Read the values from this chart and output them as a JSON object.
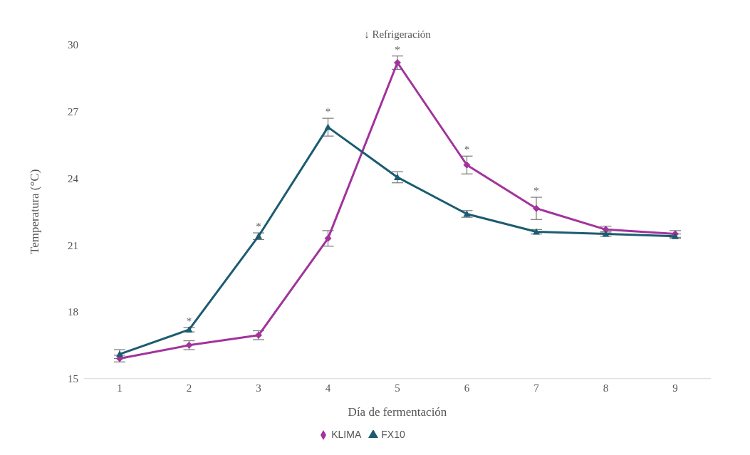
{
  "chart_data": {
    "type": "line",
    "xlabel": "Día de fermentación",
    "ylabel": "Temperatura (°C)",
    "categories": [
      "1",
      "2",
      "3",
      "4",
      "5",
      "6",
      "7",
      "8",
      "9"
    ],
    "series": [
      {
        "name": "KLIMA",
        "color": "#a2339c",
        "marker": "diamond",
        "values": [
          15.9,
          16.5,
          16.95,
          21.3,
          29.2,
          24.6,
          22.65,
          21.7,
          21.5
        ],
        "errors": [
          0.15,
          0.2,
          0.2,
          0.35,
          0.3,
          0.4,
          0.5,
          0.15,
          0.15
        ]
      },
      {
        "name": "FX10",
        "color": "#1b5c70",
        "marker": "triangle",
        "values": [
          16.1,
          17.2,
          21.4,
          26.3,
          24.05,
          22.4,
          21.6,
          21.5,
          21.4
        ],
        "errors": [
          0.2,
          0.1,
          0.15,
          0.4,
          0.25,
          0.15,
          0.1,
          0.1,
          0.1
        ]
      }
    ],
    "ylim": [
      15,
      30
    ],
    "yticks": [
      15,
      18,
      21,
      24,
      27,
      30
    ],
    "grid": false,
    "legend": "bottom",
    "line_style": "solid",
    "annotations": [
      {
        "text": "*",
        "x": "2",
        "y": 17.2
      },
      {
        "text": "*",
        "x": "3",
        "y": 21.4
      },
      {
        "text": "*",
        "x": "4",
        "y": 26.3
      },
      {
        "text": "*",
        "x": "5",
        "y": 29.2
      },
      {
        "text": "*",
        "x": "6",
        "y": 24.6
      },
      {
        "text": "*",
        "x": "7",
        "y": 22.65
      },
      {
        "text": "↓ Refrigeración",
        "x": "5",
        "y": 29.2
      }
    ]
  }
}
